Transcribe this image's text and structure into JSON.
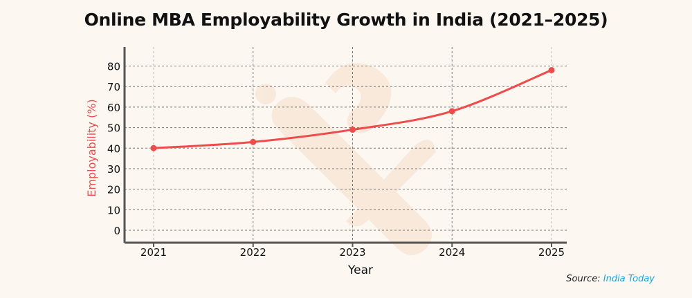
{
  "chart_data": {
    "type": "line",
    "title": "Online MBA Employability Growth in India (2021–2025)",
    "xlabel": "Year",
    "ylabel": "Employability (%)",
    "categories": [
      "2021",
      "2022",
      "2023",
      "2024",
      "2025"
    ],
    "series": [
      {
        "values": [
          40,
          43,
          49,
          58,
          78
        ],
        "color": "#f04b4b"
      }
    ],
    "yticks": [
      0,
      10,
      20,
      30,
      40,
      50,
      60,
      70,
      80
    ],
    "ylim": [
      -3,
      88
    ],
    "grid": true,
    "smooth": true
  },
  "source": {
    "label": "Source:",
    "name": "India Today",
    "name_color": "#12a3e8"
  }
}
